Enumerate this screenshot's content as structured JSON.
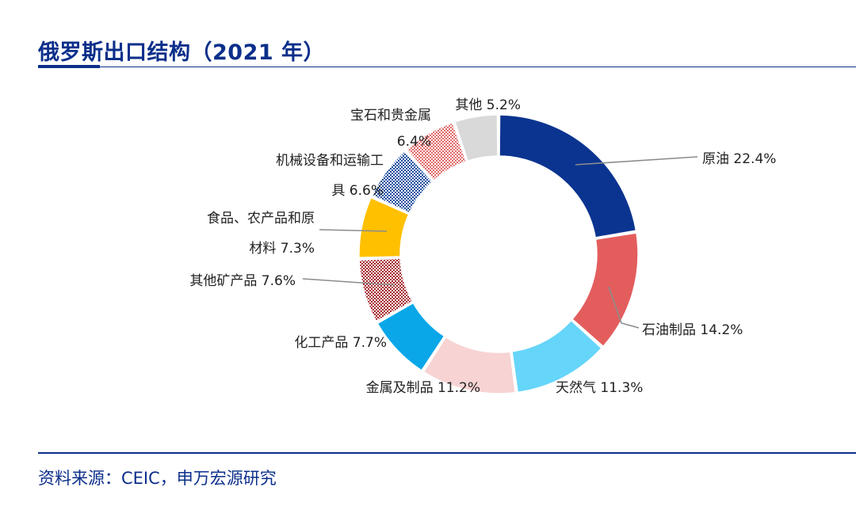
{
  "title": "俄罗斯出口结构（2021 年）",
  "source": "资料来源：CEIC，申万宏源研究",
  "chart_data": {
    "type": "pie",
    "style": "donut",
    "title": "俄罗斯出口结构（2021 年）",
    "unit": "%",
    "slices": [
      {
        "name": "原油",
        "value": 22.4,
        "color": "#0b3490",
        "fill": "solid",
        "label_lines": [
          "原油 22.4%"
        ]
      },
      {
        "name": "石油制品",
        "value": 14.2,
        "color": "#e35d5d",
        "fill": "solid",
        "label_lines": [
          "石油制品 14.2%"
        ]
      },
      {
        "name": "天然气",
        "value": 11.3,
        "color": "#66d5fa",
        "fill": "solid",
        "label_lines": [
          "天然气 11.3%"
        ]
      },
      {
        "name": "金属及制品",
        "value": 11.2,
        "color": "#f7d3d3",
        "fill": "solid",
        "label_lines": [
          "金属及制品 11.2%"
        ]
      },
      {
        "name": "化工产品",
        "value": 7.7,
        "color": "#0aa7e8",
        "fill": "solid",
        "label_lines": [
          "化工产品 7.7%"
        ]
      },
      {
        "name": "其他矿产品",
        "value": 7.6,
        "color": "#a5262b",
        "fill": "checker",
        "label_lines": [
          "其他矿产品 7.6%"
        ]
      },
      {
        "name": "食品、农产品和原材料",
        "value": 7.3,
        "color": "#ffc000",
        "fill": "solid",
        "label_lines": [
          "食品、农产品和原",
          "材料 7.3%"
        ]
      },
      {
        "name": "机械设备和运输工具",
        "value": 6.6,
        "color": "#1d4fa0",
        "fill": "checker",
        "label_lines": [
          "机械设备和运输工",
          "具 6.6%"
        ]
      },
      {
        "name": "宝石和贵金属",
        "value": 6.4,
        "color": "#e06b6b",
        "fill": "checker",
        "label_lines": [
          "宝石和贵金属",
          "6.4%"
        ]
      },
      {
        "name": "其他",
        "value": 5.2,
        "color": "#d9d9d9",
        "fill": "solid",
        "label_lines": [
          "其他 5.2%"
        ]
      }
    ]
  }
}
